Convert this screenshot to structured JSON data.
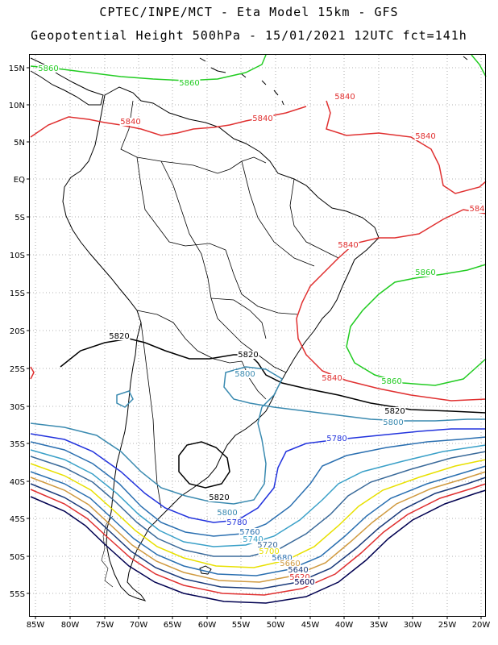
{
  "header": {
    "line1": "CPTEC/INPE/MCT -  Eta Model 15km - GFS",
    "line2": "Geopotential Height 500hPa - 15/01/2021 12UTC fct=141h"
  },
  "axes": {
    "lat_labels": [
      "15N",
      "10N",
      "5N",
      "EQ",
      "5S",
      "10S",
      "15S",
      "20S",
      "25S",
      "30S",
      "35S",
      "40S",
      "45S",
      "50S",
      "55S"
    ],
    "lon_labels": [
      "85W",
      "80W",
      "75W",
      "70W",
      "65W",
      "60W",
      "55W",
      "50W",
      "45W",
      "40W",
      "35W",
      "30W",
      "25W",
      "20W"
    ]
  },
  "contour_labels": [
    {
      "text": "5860",
      "color": "#22cc22"
    },
    {
      "text": "5860",
      "color": "#22cc22"
    },
    {
      "text": "5840",
      "color": "#e03030"
    },
    {
      "text": "5840",
      "color": "#e03030"
    },
    {
      "text": "5840",
      "color": "#e03030"
    },
    {
      "text": "5840",
      "color": "#e03030"
    },
    {
      "text": "584",
      "color": "#e03030"
    },
    {
      "text": "5840",
      "color": "#e03030"
    },
    {
      "text": "5860",
      "color": "#22cc22"
    },
    {
      "text": "5820",
      "color": "#000000"
    },
    {
      "text": "5820",
      "color": "#000000"
    },
    {
      "text": "5800",
      "color": "#3a8ab0"
    },
    {
      "text": "5840",
      "color": "#e03030"
    },
    {
      "text": "5860",
      "color": "#22cc22"
    },
    {
      "text": "5820",
      "color": "#000000"
    },
    {
      "text": "5800",
      "color": "#3a8ab0"
    },
    {
      "text": "5780",
      "color": "#2233dd"
    },
    {
      "text": "5820",
      "color": "#000000"
    },
    {
      "text": "5800",
      "color": "#3a8ab0"
    },
    {
      "text": "5780",
      "color": "#2233dd"
    },
    {
      "text": "5760",
      "color": "#2a6fb0"
    },
    {
      "text": "5740",
      "color": "#3aa0c8"
    },
    {
      "text": "5720",
      "color": "#3a6a9a"
    },
    {
      "text": "5700",
      "color": "#e8e000"
    },
    {
      "text": "5680",
      "color": "#2a6fb0"
    },
    {
      "text": "5660",
      "color": "#d09a40"
    },
    {
      "text": "5640",
      "color": "#1a3a7a"
    },
    {
      "text": "5620",
      "color": "#e03030"
    },
    {
      "text": "5600",
      "color": "#000050"
    }
  ]
}
